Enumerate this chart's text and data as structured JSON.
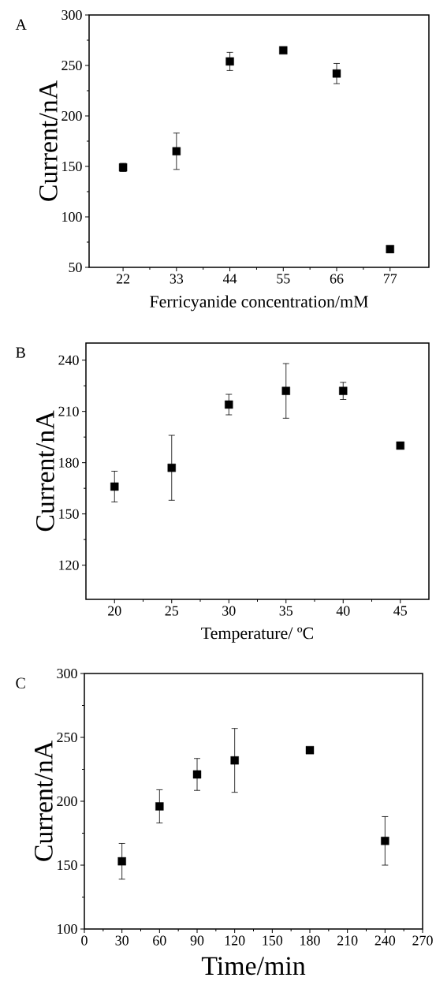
{
  "chart_data": [
    {
      "type": "scatter",
      "annotations": [
        "A"
      ],
      "xlabel": "Ferricyanide concentration/mM",
      "ylabel": "Current/nA",
      "marker": "square",
      "xlim": [
        15,
        85
      ],
      "xticks": [
        22,
        33,
        44,
        55,
        66,
        77
      ],
      "ylim": [
        50,
        300
      ],
      "yticks": [
        50,
        100,
        150,
        200,
        250,
        300
      ],
      "series": [
        {
          "color": "#000000",
          "x": [
            22,
            33,
            44,
            55,
            66,
            77
          ],
          "values": [
            149,
            165,
            254,
            265,
            242,
            68
          ],
          "errors": [
            4,
            18,
            9,
            2,
            10,
            3
          ]
        }
      ]
    },
    {
      "type": "scatter",
      "annotations": [
        "B"
      ],
      "xlabel": "Temperature/ ºC",
      "ylabel": "Current/nA",
      "marker": "square",
      "xlim": [
        17.5,
        47.5
      ],
      "xticks": [
        20,
        25,
        30,
        35,
        40,
        45
      ],
      "ylim": [
        100,
        250
      ],
      "yticks": [
        120,
        150,
        180,
        210,
        240
      ],
      "series": [
        {
          "color": "#000000",
          "x": [
            20,
            25,
            30,
            35,
            40,
            45
          ],
          "values": [
            166,
            177,
            214,
            222,
            222,
            190
          ],
          "errors": [
            9,
            19,
            6,
            16,
            5,
            null
          ]
        }
      ]
    },
    {
      "type": "scatter",
      "annotations": [
        "C"
      ],
      "xlabel": "Time/min",
      "ylabel": "Current/nA",
      "marker": "square",
      "xlim": [
        0,
        270
      ],
      "xticks": [
        0,
        30,
        60,
        90,
        120,
        150,
        180,
        210,
        240,
        270
      ],
      "ylim": [
        100,
        300
      ],
      "yticks": [
        100,
        150,
        200,
        250,
        300
      ],
      "series": [
        {
          "color": "#000000",
          "x": [
            30,
            60,
            90,
            120,
            180,
            240
          ],
          "values": [
            153,
            196,
            221,
            232,
            240,
            169
          ],
          "errors": [
            14,
            13,
            12.5,
            25,
            null,
            19
          ]
        }
      ]
    }
  ]
}
